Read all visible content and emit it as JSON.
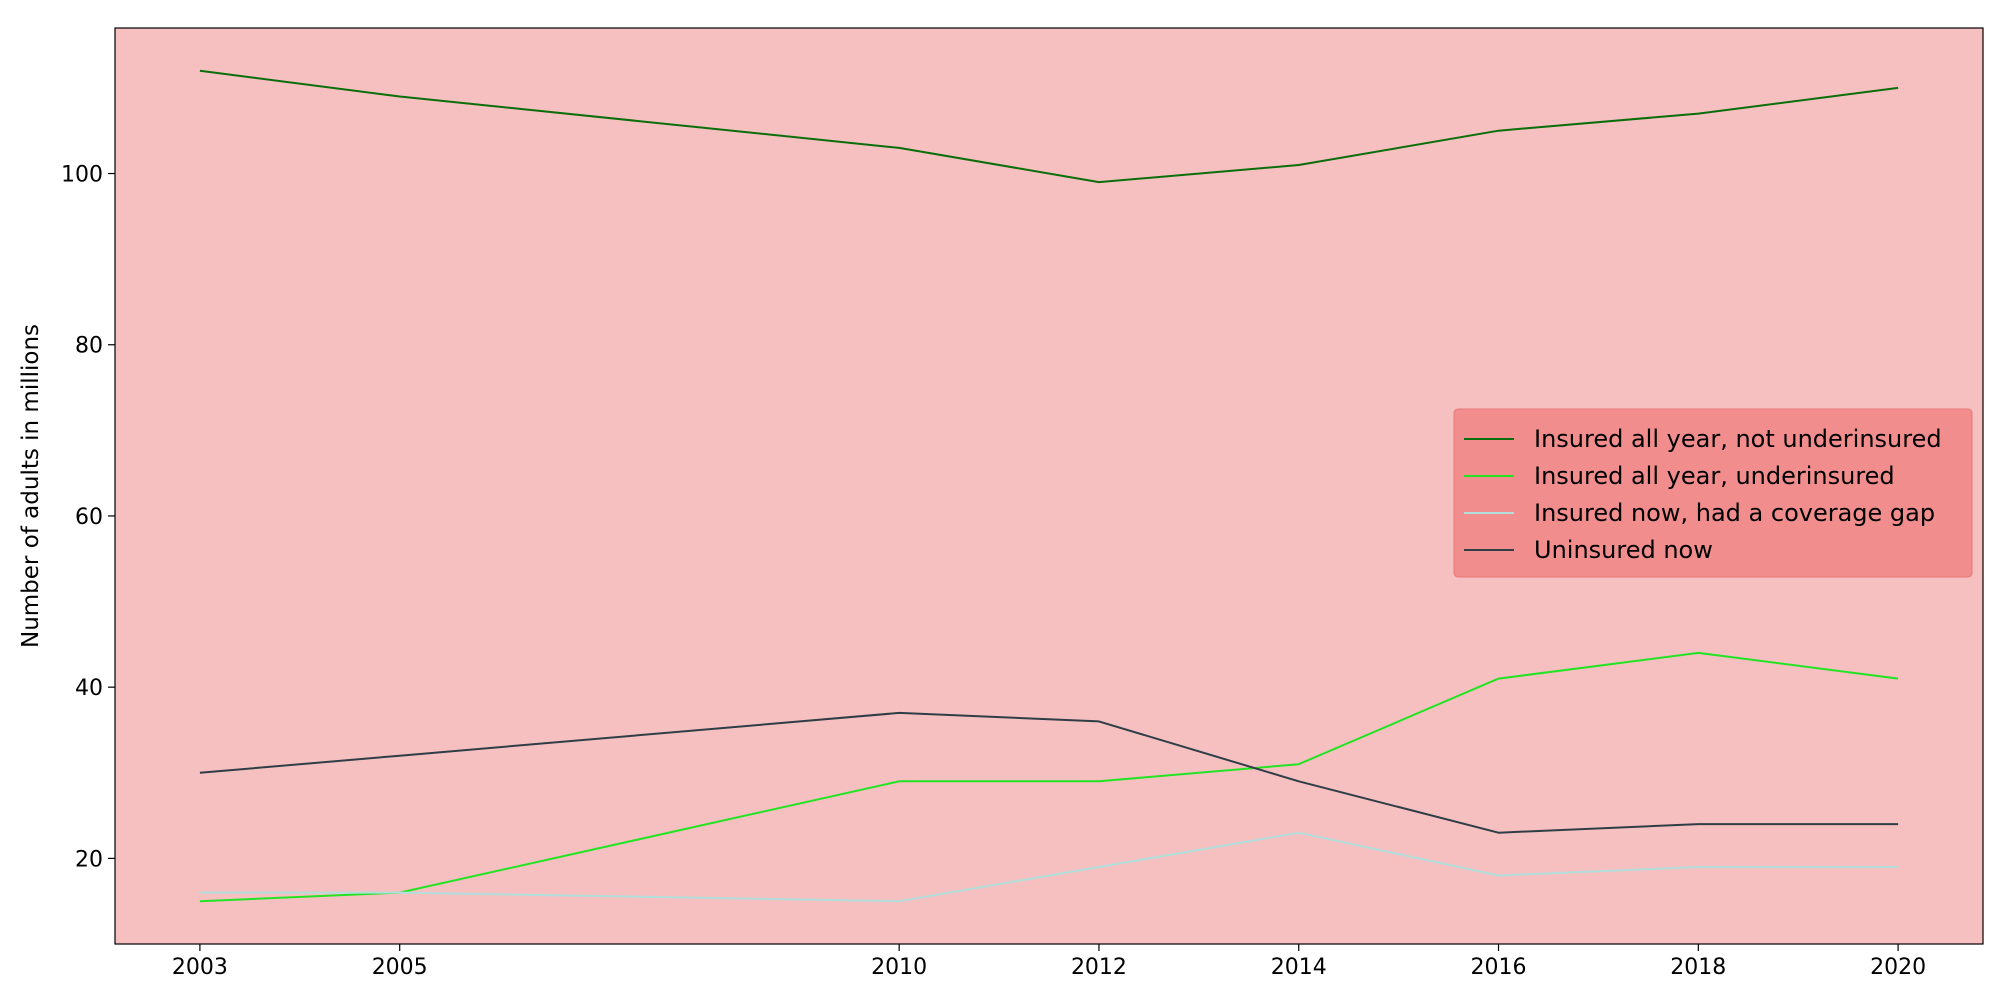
{
  "chart_data": {
    "type": "line",
    "title": "",
    "xlabel": "",
    "ylabel": "Number of adults in millions",
    "x": [
      2003,
      2005,
      2010,
      2012,
      2014,
      2016,
      2018,
      2020
    ],
    "xlim": [
      2002.15,
      2020.85
    ],
    "ylim": [
      10,
      117
    ],
    "yticks": [
      20,
      40,
      60,
      80,
      100
    ],
    "grid": false,
    "legend_position": "center-right",
    "plot_background": "#f6bfc0",
    "legend_background": "#f08a8a",
    "series": [
      {
        "name": "Insured all year, not underinsured",
        "color": "#0a6e0a",
        "values": [
          112,
          109,
          103,
          99,
          101,
          105,
          107,
          110
        ]
      },
      {
        "name": "Insured all year, underinsured",
        "color": "#22e422",
        "values": [
          15,
          16,
          29,
          29,
          31,
          41,
          44,
          41
        ]
      },
      {
        "name": "Insured now, had a coverage gap",
        "color": "#b2dfdb",
        "values": [
          16,
          16,
          15,
          19,
          23,
          18,
          19,
          19
        ]
      },
      {
        "name": "Uninsured now",
        "color": "#2f3e46",
        "values": [
          30,
          32,
          37,
          36,
          29,
          23,
          24,
          24
        ]
      }
    ]
  }
}
